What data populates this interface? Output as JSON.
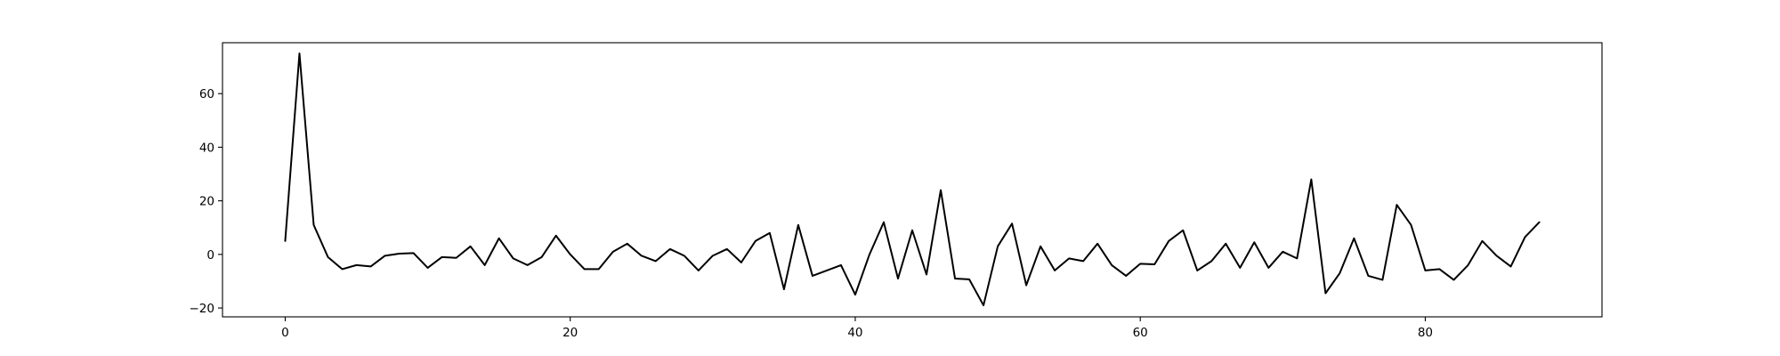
{
  "chart_data": {
    "type": "line",
    "title": "",
    "xlabel": "",
    "ylabel": "",
    "xlim": [
      -4.4,
      92.4
    ],
    "ylim": [
      -23.3,
      79.0
    ],
    "grid": false,
    "legend": "none",
    "x_ticks": [
      0,
      20,
      40,
      60,
      80
    ],
    "x_tick_labels": [
      "0",
      "20",
      "40",
      "60",
      "80"
    ],
    "y_ticks": [
      -20,
      0,
      20,
      40,
      60
    ],
    "y_tick_labels": [
      "−20",
      "0",
      "20",
      "40",
      "60"
    ],
    "line_color": "#000000",
    "series": [
      {
        "x": [
          0,
          1,
          2,
          3,
          4,
          5,
          6,
          7,
          8,
          9,
          10,
          11,
          12,
          13,
          14,
          15,
          16,
          17,
          18,
          19,
          20,
          21,
          22,
          23,
          24,
          25,
          26,
          27,
          28,
          29,
          30,
          31,
          32,
          33,
          34,
          35,
          36,
          37,
          38,
          39,
          40,
          41,
          42,
          43,
          44,
          45,
          46,
          47,
          48,
          49,
          50,
          51,
          52,
          53,
          54,
          55,
          56,
          57,
          58,
          59,
          60,
          61,
          62,
          63,
          64,
          65,
          66,
          67,
          68,
          69,
          70,
          71,
          72,
          73,
          74,
          75,
          76,
          77,
          78,
          79,
          80,
          81,
          82,
          83,
          84,
          85,
          86,
          87,
          88
        ],
        "values": [
          5,
          75,
          11,
          -1,
          -5.5,
          -4,
          -4.5,
          -0.5,
          0.3,
          0.5,
          -5,
          -1,
          -1.3,
          3,
          -4,
          6,
          -1.5,
          -4,
          -1,
          7,
          0,
          -5.5,
          -5.5,
          1,
          4,
          -0.5,
          -2.5,
          2,
          -0.5,
          -6,
          -0.5,
          2,
          -3,
          5,
          8,
          -13,
          11,
          -8,
          -6,
          -4,
          -15,
          0,
          12,
          -9,
          9,
          -7.5,
          24,
          -9,
          -9.3,
          -19,
          3,
          11.5,
          -11.5,
          3,
          -6,
          -1.5,
          -2.5,
          4,
          -4,
          -8,
          -3.5,
          -3.7,
          5,
          9,
          -6,
          -2.5,
          4,
          -5,
          4.5,
          -5,
          1,
          -1.5,
          28,
          -14.5,
          -7,
          6,
          -8,
          -9.5,
          18.5,
          11,
          -6,
          -5.5,
          -9.5,
          -4,
          5,
          -0.5,
          -4.5,
          6.5,
          12
        ]
      }
    ]
  }
}
